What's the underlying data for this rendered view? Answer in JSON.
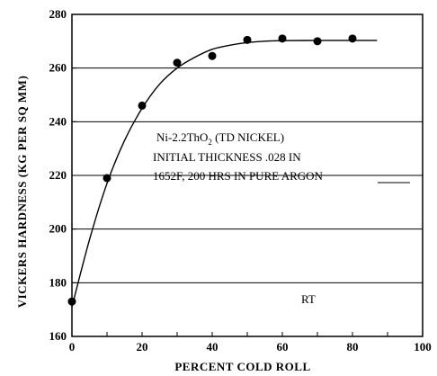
{
  "chart_data": {
    "type": "scatter",
    "xlabel": "PERCENT COLD ROLL",
    "ylabel": "VICKERS HARDNESS (KG PER SQ MM)",
    "xlim": [
      0,
      100
    ],
    "ylim": [
      160,
      280
    ],
    "x_ticks": [
      "0",
      "20",
      "40",
      "60",
      "80",
      "100"
    ],
    "y_ticks": [
      "160",
      "180",
      "200",
      "220",
      "240",
      "260",
      "280"
    ],
    "grid": "horizontal",
    "series": [
      {
        "marker": "filled-circle",
        "points": [
          {
            "x": 0,
            "y": 173
          },
          {
            "x": 10,
            "y": 219
          },
          {
            "x": 20,
            "y": 246
          },
          {
            "x": 30,
            "y": 262
          },
          {
            "x": 40,
            "y": 264.5
          },
          {
            "x": 50,
            "y": 270.5
          },
          {
            "x": 60,
            "y": 271
          },
          {
            "x": 70,
            "y": 270
          },
          {
            "x": 80,
            "y": 271
          }
        ]
      }
    ],
    "fit_curve": [
      {
        "x": 0,
        "y": 171
      },
      {
        "x": 5,
        "y": 196
      },
      {
        "x": 10,
        "y": 217
      },
      {
        "x": 15,
        "y": 233
      },
      {
        "x": 20,
        "y": 245
      },
      {
        "x": 25,
        "y": 254
      },
      {
        "x": 30,
        "y": 260
      },
      {
        "x": 35,
        "y": 264
      },
      {
        "x": 40,
        "y": 267
      },
      {
        "x": 45,
        "y": 268.5
      },
      {
        "x": 50,
        "y": 269.5
      },
      {
        "x": 55,
        "y": 270
      },
      {
        "x": 60,
        "y": 270.2
      },
      {
        "x": 70,
        "y": 270.3
      },
      {
        "x": 80,
        "y": 270.3
      },
      {
        "x": 87,
        "y": 270.3
      }
    ],
    "annotations": {
      "line1_main": "Ni-2.2ThO",
      "line1_sub": "2",
      "line1_rest": " (TD NICKEL)",
      "line2": "INITIAL THICKNESS .028 IN",
      "line3": "1652F, 200 HRS IN PURE ARGON",
      "condition": "RT"
    }
  }
}
